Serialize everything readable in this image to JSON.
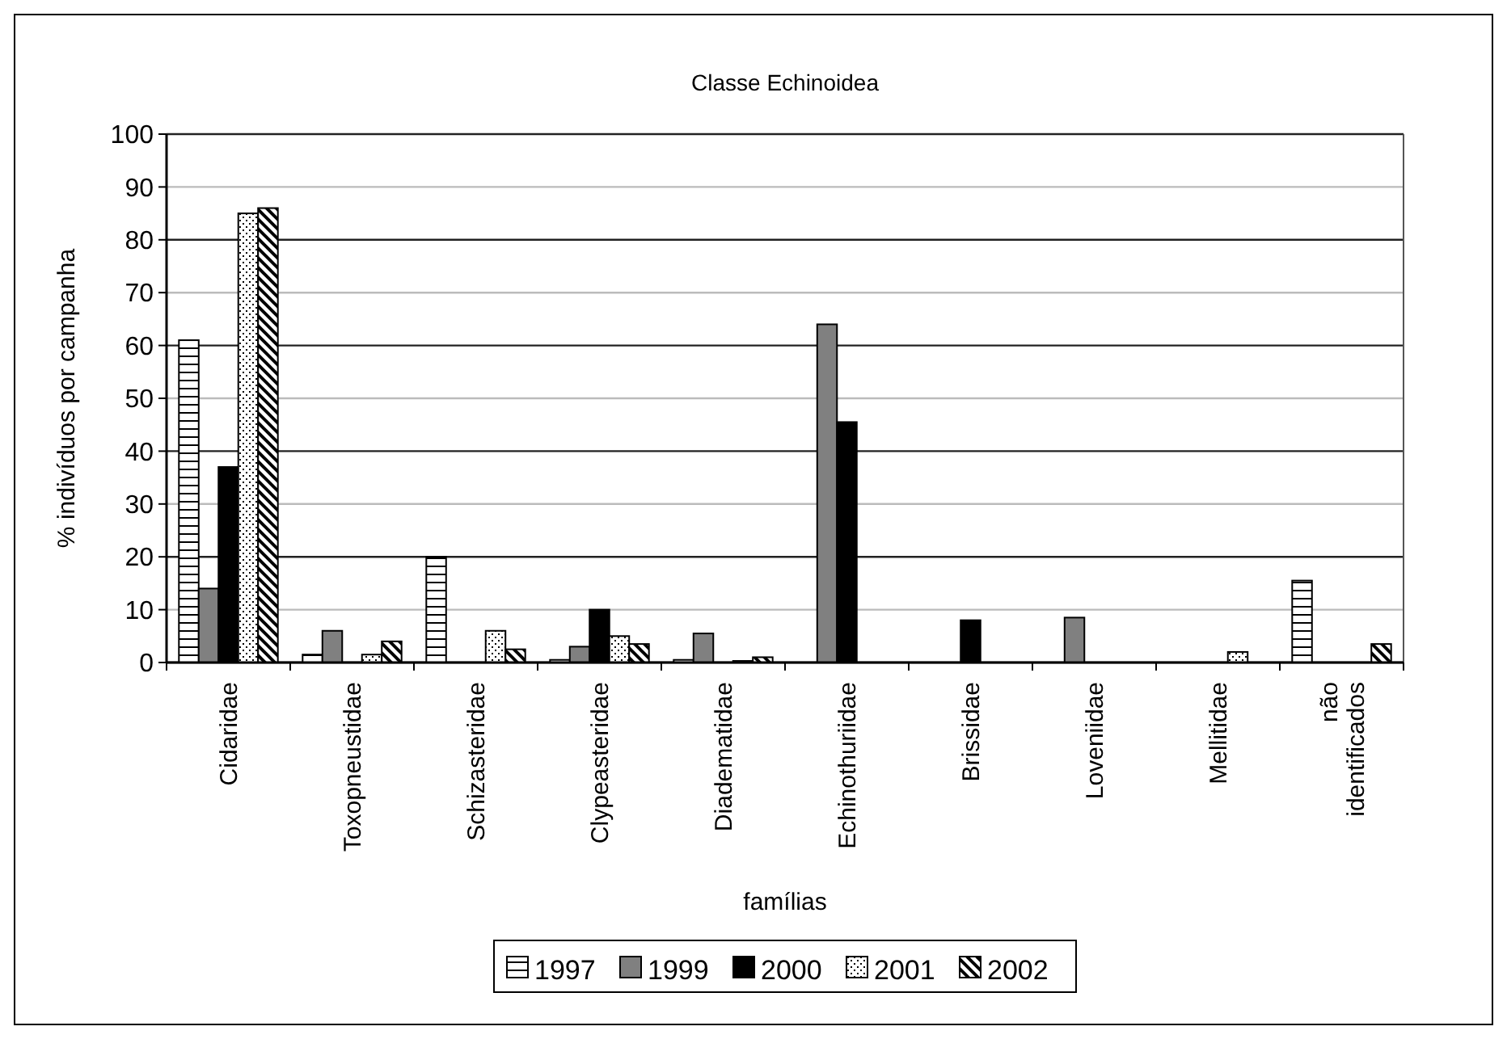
{
  "chart_data": {
    "type": "bar",
    "title": "Classe Echinoidea",
    "xlabel": "famílias",
    "ylabel": "% indivíduos por campanha",
    "categories": [
      "Cidaridae",
      "Toxopneustidae",
      "Schizasteridae",
      "Clypeasteridae",
      "Diadematidae",
      "Echinothuriidae",
      "Brissidae",
      "Loveniidae",
      "Mellitidae",
      "não identificados"
    ],
    "series": [
      {
        "name": "1997",
        "color": "#000000",
        "values": [
          61,
          1.5,
          20,
          0.5,
          0.5,
          0,
          0,
          0,
          0,
          15.5
        ]
      },
      {
        "name": "1999",
        "color": "#808080",
        "values": [
          14,
          6,
          0,
          3,
          5.5,
          64,
          0,
          8.5,
          0,
          0
        ]
      },
      {
        "name": "2000",
        "color": "#000000",
        "values": [
          37,
          0,
          0,
          10,
          0,
          45.5,
          8,
          0,
          0,
          0
        ]
      },
      {
        "name": "2001",
        "color": "#000000",
        "values": [
          85,
          1.5,
          6,
          5,
          0.3,
          0,
          0,
          0,
          2,
          0
        ]
      },
      {
        "name": "2002",
        "color": "#000000",
        "values": [
          86,
          4,
          2.5,
          3.5,
          1,
          0,
          0,
          0,
          0,
          3.5
        ]
      }
    ],
    "ylim": [
      0,
      100
    ],
    "yticks": [
      0,
      10,
      20,
      30,
      40,
      50,
      60,
      70,
      80,
      90,
      100
    ],
    "grid": "y",
    "legend": "bottom"
  }
}
